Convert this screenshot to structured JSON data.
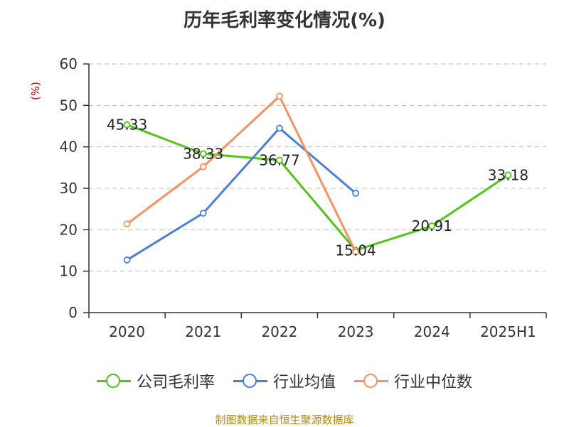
{
  "title": "历年毛利率变化情况(%)",
  "source": "制图数据来自恒生聚源数据库",
  "chart_data": {
    "type": "line",
    "title": "历年毛利率变化情况(%)",
    "ylabel": "(%)",
    "xlabel": "",
    "categories": [
      "2020",
      "2021",
      "2022",
      "2023",
      "2024",
      "2025H1"
    ],
    "ylim": [
      0,
      60
    ],
    "yticks": [
      0,
      10,
      20,
      30,
      40,
      50,
      60
    ],
    "grid": true,
    "legend_position": "bottom",
    "series": [
      {
        "name": "公司毛利率",
        "color": "#52c41a",
        "values": [
          45.33,
          38.33,
          36.77,
          15.04,
          20.91,
          33.18
        ],
        "labels": [
          "45.33",
          "38.33",
          "36.77",
          "15.04",
          "20.91",
          "33.18"
        ]
      },
      {
        "name": "行业均值",
        "color": "#4a7fdc",
        "values": [
          12.7,
          24.0,
          44.5,
          28.8,
          null,
          null
        ]
      },
      {
        "name": "行业中位数",
        "color": "#f5925e",
        "values": [
          21.4,
          35.2,
          52.2,
          14.6,
          null,
          null
        ]
      }
    ]
  }
}
